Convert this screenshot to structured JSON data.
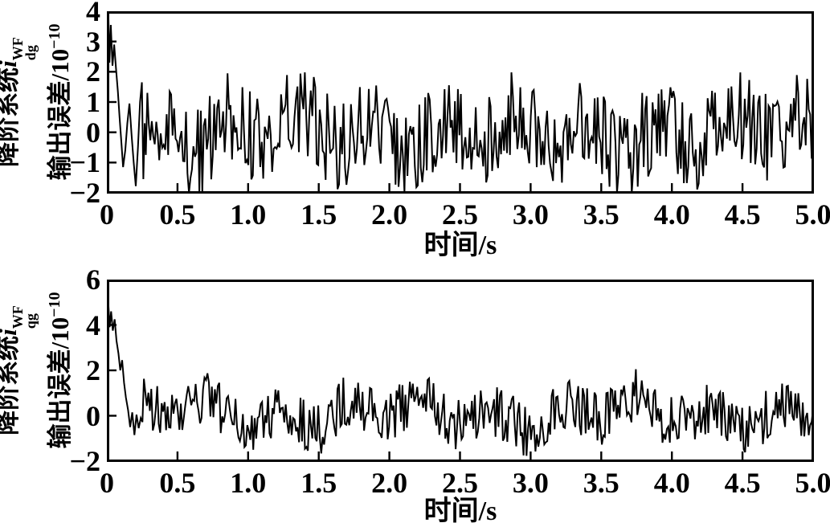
{
  "chart_data": [
    {
      "type": "line",
      "xlabel": "时间/s",
      "ylabel": {
        "prefix": "降阶系统",
        "variable": "i",
        "var_sub": "dg",
        "var_sup": "WF",
        "line2": "输出误差/10",
        "line2_exp": "−10"
      },
      "xlim": [
        0,
        5
      ],
      "ylim": [
        -2,
        4
      ],
      "xticks": [
        0,
        0.5,
        1,
        1.5,
        2,
        2.5,
        3,
        3.5,
        4,
        4.5,
        5
      ],
      "xtick_labels": [
        "0",
        "0.5",
        "1.0",
        "1.5",
        "2.0",
        "2.5",
        "3.0",
        "3.5",
        "4.0",
        "4.5",
        "5.0"
      ],
      "yticks": [
        4,
        3,
        2,
        1,
        0,
        -1,
        -2
      ],
      "ytick_labels": [
        "4",
        "3",
        "2",
        "1",
        "0",
        "−1",
        "−2"
      ],
      "grid": false,
      "line_color": "#000000",
      "background": "#ffffff",
      "series": {
        "name": "i_dg^WF output error (x10^-10)",
        "transient": [
          [
            0,
            2.05
          ],
          [
            0.01,
            4.0
          ],
          [
            0.018,
            2.3
          ],
          [
            0.028,
            3.55
          ],
          [
            0.04,
            2.2
          ],
          [
            0.052,
            2.9
          ],
          [
            0.065,
            2.1
          ],
          [
            0.078,
            1.35
          ],
          [
            0.09,
            0.5
          ],
          [
            0.103,
            -0.35
          ],
          [
            0.115,
            -1.15
          ],
          [
            0.13,
            -0.6
          ],
          [
            0.145,
            0.3
          ],
          [
            0.16,
            0.95
          ],
          [
            0.175,
            -0.1
          ],
          [
            0.19,
            -1.0
          ],
          [
            0.205,
            -1.78
          ],
          [
            0.22,
            -0.5
          ],
          [
            0.235,
            1.0
          ],
          [
            0.248,
            1.65
          ],
          [
            0.258,
            -1.55
          ],
          [
            0.268,
            0.3
          ]
        ],
        "noise": {
          "t0": 0.276,
          "t1": 5.0,
          "n": 450,
          "seed": 123456789,
          "amp": 1.52,
          "w1": 0.48,
          "w2": 0.3,
          "p1": 0.7,
          "p2": 3.9,
          "offset": 0.02,
          "clip": [
            -2.0,
            1.98
          ]
        }
      }
    },
    {
      "type": "line",
      "xlabel": "时间/s",
      "ylabel": {
        "prefix": "降阶系统",
        "variable": "i",
        "var_sub": "qg",
        "var_sup": "WF",
        "line2": "输出误差/10",
        "line2_exp": "−10"
      },
      "xlim": [
        0,
        5
      ],
      "ylim": [
        -2,
        6
      ],
      "xticks": [
        0,
        0.5,
        1,
        1.5,
        2,
        2.5,
        3,
        3.5,
        4,
        4.5,
        5
      ],
      "xtick_labels": [
        "0",
        "0.5",
        "1.0",
        "1.5",
        "2.0",
        "2.5",
        "3.0",
        "3.5",
        "4.0",
        "4.5",
        "5.0"
      ],
      "yticks": [
        6,
        4,
        2,
        0,
        -2
      ],
      "ytick_labels": [
        "6",
        "4",
        "2",
        "0",
        "−2"
      ],
      "grid": false,
      "line_color": "#000000",
      "background": "#ffffff",
      "series": {
        "name": "i_qg^WF output error (x10^-10)",
        "transient": [
          [
            0,
            4.2
          ],
          [
            0.01,
            4.95
          ],
          [
            0.02,
            3.9
          ],
          [
            0.03,
            4.6
          ],
          [
            0.042,
            3.75
          ],
          [
            0.055,
            4.25
          ],
          [
            0.068,
            3.3
          ],
          [
            0.082,
            2.75
          ],
          [
            0.095,
            2.0
          ],
          [
            0.108,
            2.45
          ],
          [
            0.122,
            1.45
          ],
          [
            0.135,
            0.8
          ],
          [
            0.15,
            0.25
          ],
          [
            0.165,
            -0.5
          ],
          [
            0.18,
            0.15
          ],
          [
            0.195,
            -0.85
          ],
          [
            0.21,
            0.05
          ],
          [
            0.225,
            -0.55
          ],
          [
            0.24,
            -0.1
          ]
        ],
        "noise": {
          "t0": 0.252,
          "t1": 5.0,
          "n": 455,
          "seed": 987654321,
          "amp": 1.2,
          "w1": 0.5,
          "w2": 0.32,
          "p1": 2.1,
          "p2": 0.9,
          "offset": 0.08,
          "clip": [
            -2.0,
            2.05
          ]
        }
      }
    }
  ]
}
